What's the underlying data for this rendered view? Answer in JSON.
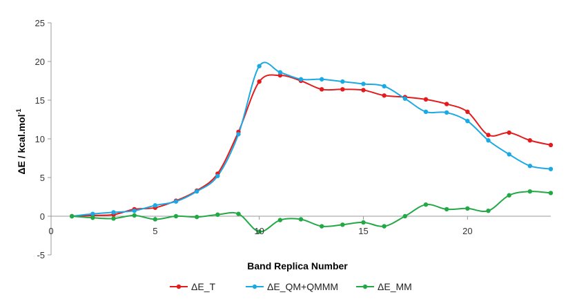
{
  "chart_data": {
    "type": "line",
    "xlabel": "Band Replica Number",
    "ylabel_main": "ΔE / kcal.mol",
    "ylabel_sup": "-1",
    "xlim": [
      0,
      24
    ],
    "ylim": [
      -5,
      25
    ],
    "x_ticks": [
      0,
      5,
      10,
      15,
      20
    ],
    "y_ticks": [
      -5,
      0,
      5,
      10,
      15,
      20,
      25
    ],
    "grid": false,
    "legend_position": "bottom",
    "x": [
      1,
      2,
      3,
      4,
      5,
      6,
      7,
      8,
      9,
      10,
      11,
      12,
      13,
      14,
      15,
      16,
      17,
      18,
      19,
      20,
      21,
      22,
      23,
      24
    ],
    "series": [
      {
        "name": "ΔE_T",
        "color": "#e41a1c",
        "values": [
          0,
          0.1,
          0.2,
          0.9,
          1.1,
          2.0,
          3.3,
          5.5,
          10.9,
          17.4,
          18.2,
          17.5,
          16.4,
          16.4,
          16.3,
          15.6,
          15.4,
          15.1,
          14.5,
          13.5,
          10.5,
          10.8,
          9.8,
          9.2
        ]
      },
      {
        "name": "ΔE_QM+QMMM",
        "color": "#1aa9e3",
        "values": [
          0,
          0.3,
          0.5,
          0.7,
          1.4,
          1.9,
          3.2,
          5.2,
          10.6,
          19.4,
          18.6,
          17.7,
          17.7,
          17.4,
          17.1,
          16.8,
          15.2,
          13.5,
          13.4,
          12.3,
          9.8,
          8.0,
          6.5,
          6.1
        ]
      },
      {
        "name": "ΔE_MM",
        "color": "#22a845",
        "values": [
          0,
          -0.2,
          -0.3,
          0.1,
          -0.4,
          0.0,
          -0.1,
          0.2,
          0.3,
          -2.0,
          -0.5,
          -0.4,
          -1.3,
          -1.1,
          -0.8,
          -1.3,
          0.0,
          1.5,
          0.9,
          1.0,
          0.7,
          2.7,
          3.2,
          3.0
        ]
      }
    ]
  }
}
